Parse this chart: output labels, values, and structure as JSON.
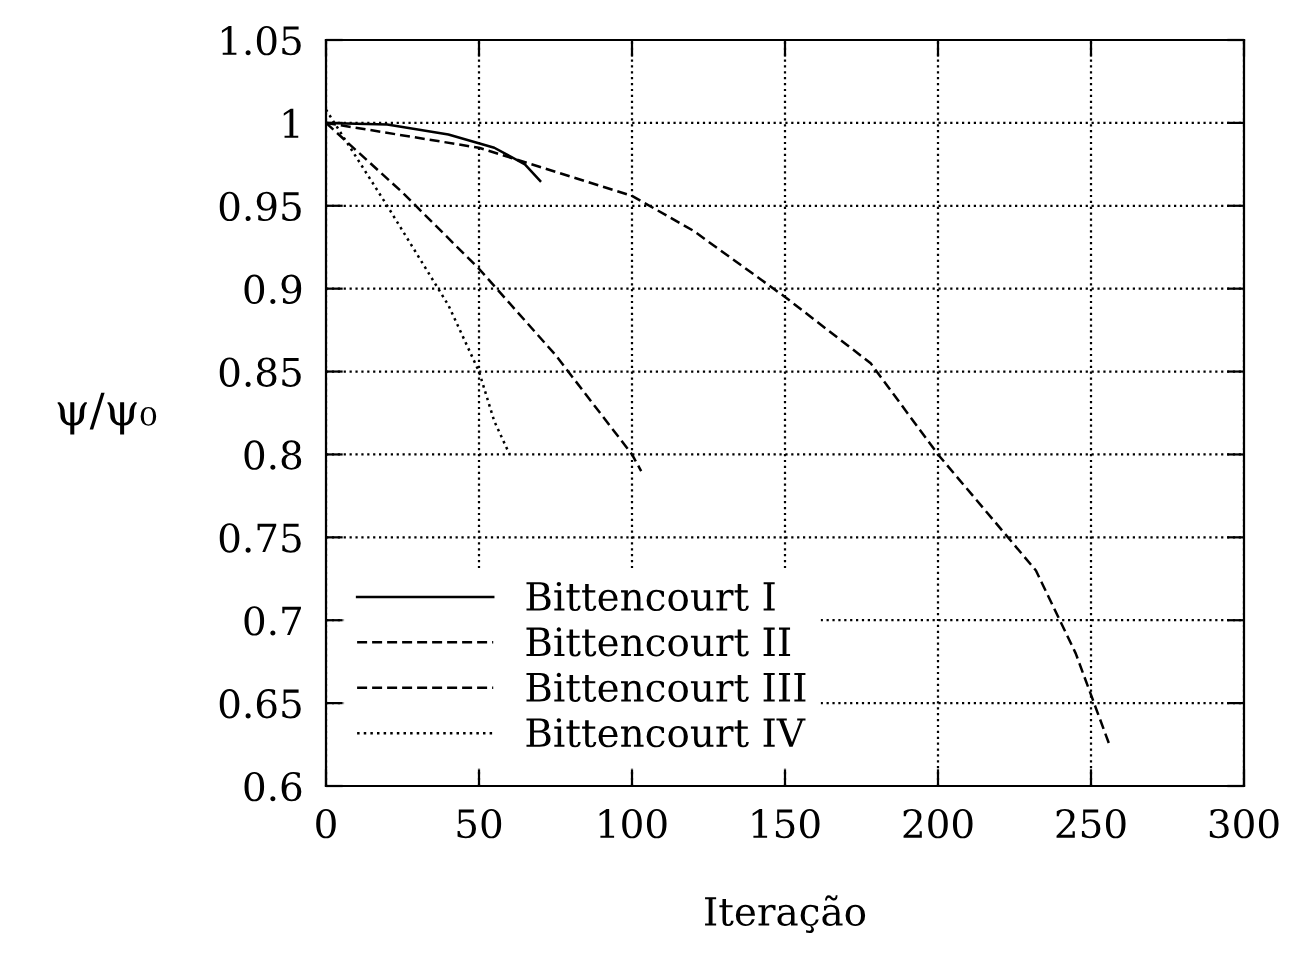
{
  "chart_data": {
    "type": "line",
    "xlabel": "Iteração",
    "ylabel": "ψ/ψ₀",
    "xlim": [
      0,
      300
    ],
    "xticks": [
      0,
      50,
      100,
      150,
      200,
      250,
      300
    ],
    "ylim": [
      0.6,
      1.05
    ],
    "yticks": [
      0.6,
      0.65,
      0.7,
      0.75,
      0.8,
      0.85,
      0.9,
      0.95,
      1,
      1.05
    ],
    "grid": true,
    "legend": "bottom left",
    "series": [
      {
        "name": "Bittencourt I",
        "color": "#000000",
        "line_style": "solid",
        "x": [
          0,
          20,
          40,
          55,
          65,
          70
        ],
        "values": [
          1.0,
          0.999,
          0.993,
          0.985,
          0.975,
          0.965
        ]
      },
      {
        "name": "Bittencourt II",
        "color": "#000000",
        "line_style": "dashed",
        "x": [
          0,
          25,
          50,
          75,
          100,
          103
        ],
        "values": [
          1.0,
          0.958,
          0.912,
          0.86,
          0.8,
          0.79
        ]
      },
      {
        "name": "Bittencourt III",
        "color": "#000000",
        "line_style": "dashed",
        "x": [
          0,
          50,
          100,
          120,
          150,
          178,
          200,
          232,
          245,
          256
        ],
        "values": [
          1.0,
          0.985,
          0.956,
          0.935,
          0.895,
          0.855,
          0.8,
          0.73,
          0.68,
          0.625
        ]
      },
      {
        "name": "Bittencourt IV",
        "color": "#000000",
        "line_style": "dotted",
        "x": [
          0,
          20,
          40,
          50,
          55,
          60
        ],
        "values": [
          1.008,
          0.95,
          0.89,
          0.85,
          0.82,
          0.8
        ]
      }
    ]
  }
}
